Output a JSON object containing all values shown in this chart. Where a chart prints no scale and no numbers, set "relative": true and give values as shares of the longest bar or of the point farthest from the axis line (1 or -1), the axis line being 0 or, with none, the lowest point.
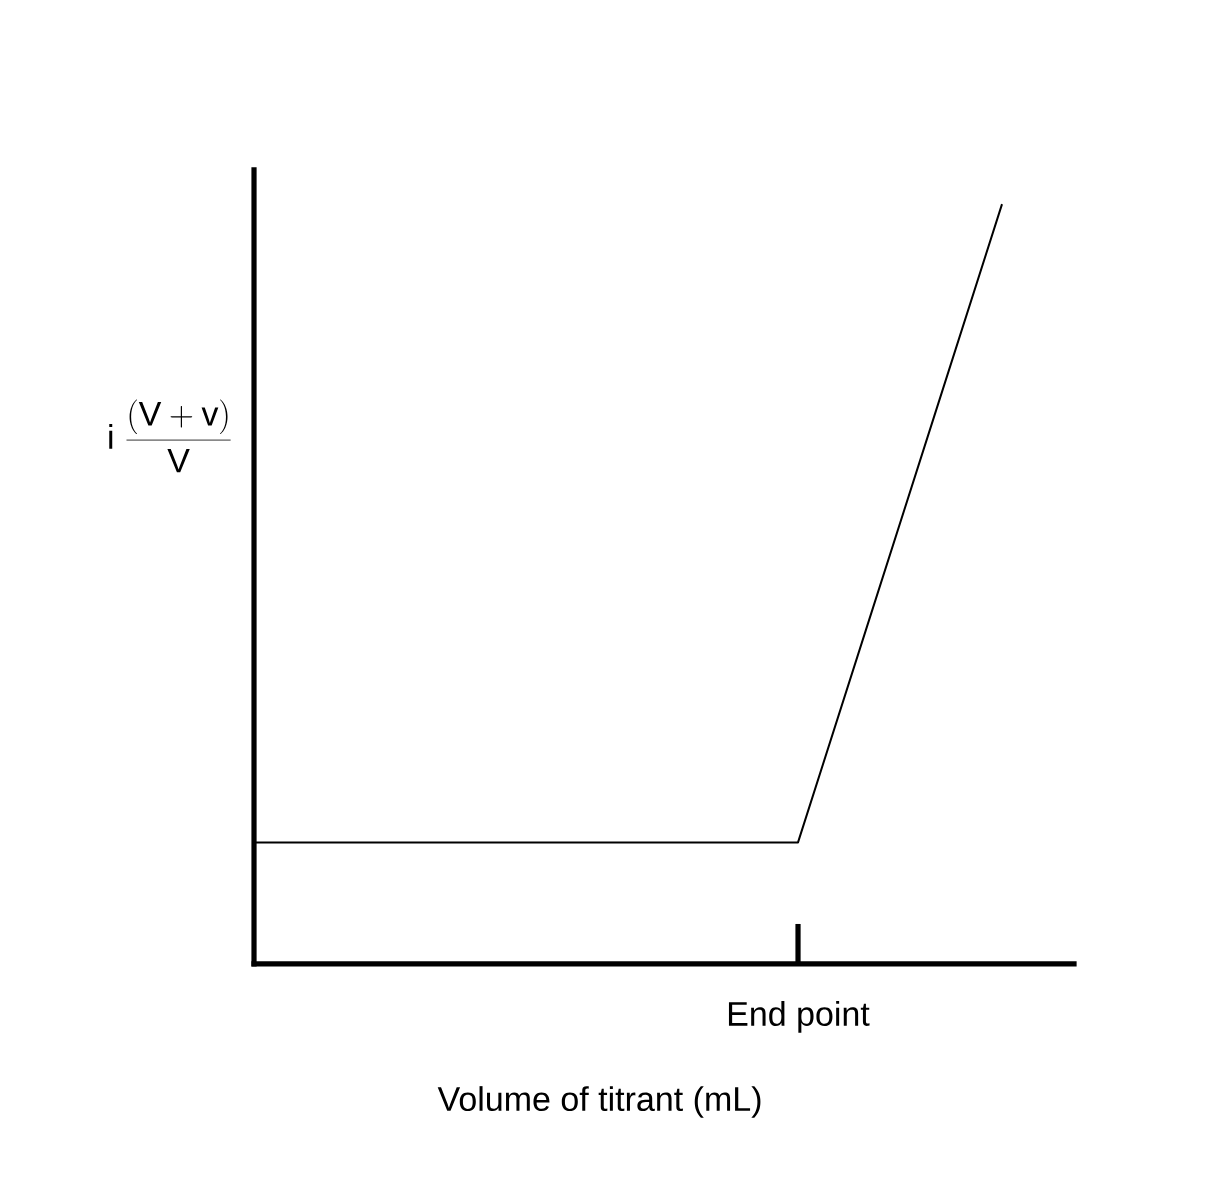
{
  "chart_data": {
    "type": "line",
    "xlabel": "Volume of titrant (mL)",
    "ylabel": "\\mathrm{i}\\;\\frac{\\mathrm{(V+v)}}{\\mathrm{V}}",
    "categories": [
      null,
      null,
      null,
      null,
      null,
      null,
      null,
      null,
      null,
      null,
      null,
      null
    ],
    "values": [
      0.16,
      0.16,
      0.16,
      0.16,
      0.16,
      0.16,
      0.16,
      0.16,
      0.16,
      0.44,
      0.72,
      1
    ],
    "relative": true,
    "color": "#000000",
    "annotations": [
      "End point"
    ]
  }
}
